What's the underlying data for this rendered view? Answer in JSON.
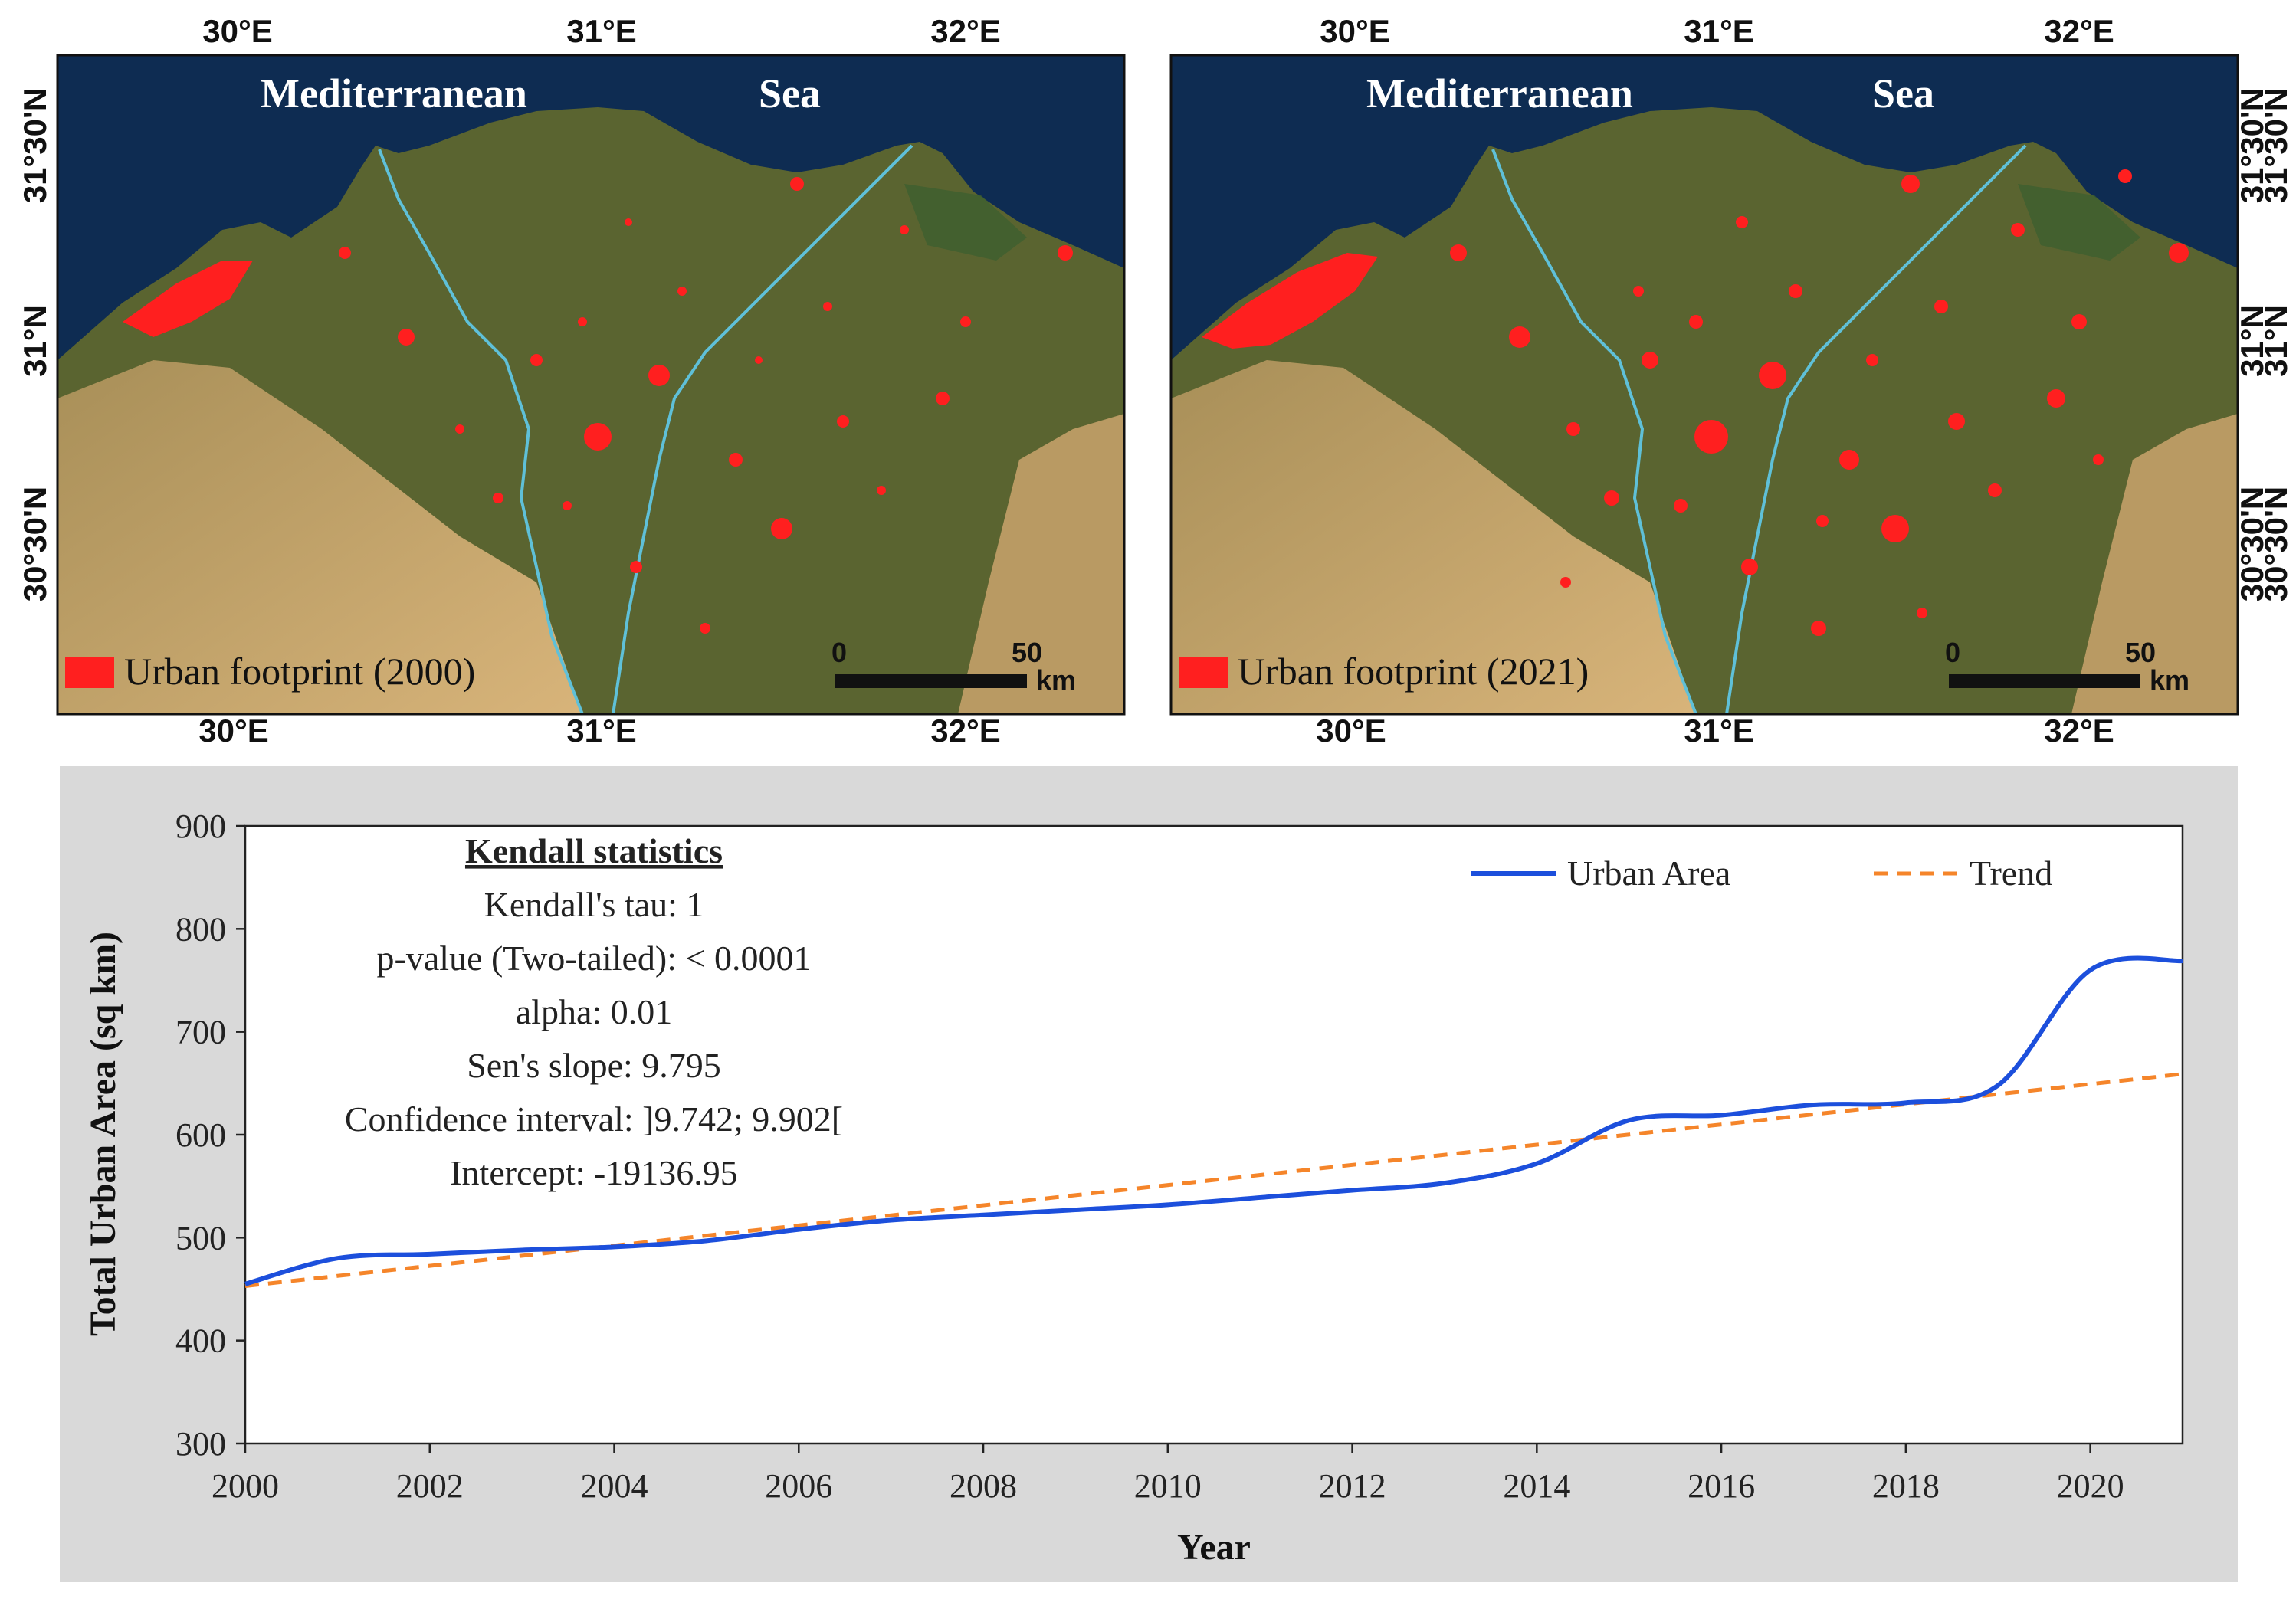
{
  "maps": [
    {
      "sea_words": [
        "Mediterranean",
        "Sea"
      ],
      "legend_label": "Urban footprint (2000)",
      "lon_labels": [
        "30°E",
        "31°E",
        "32°E"
      ],
      "lat_labels": [
        "31°30'N",
        "31°N",
        "30°30'N"
      ],
      "scale": {
        "start": "0",
        "end": "50",
        "unit": "km"
      }
    },
    {
      "sea_words": [
        "Mediterranean",
        "Sea"
      ],
      "legend_label": "Urban footprint (2021)",
      "lon_labels": [
        "30°E",
        "31°E",
        "32°E"
      ],
      "lat_labels": [
        "31°30'N",
        "31°N",
        "30°30'N"
      ],
      "scale": {
        "start": "0",
        "end": "50",
        "unit": "km"
      }
    }
  ],
  "colors": {
    "sea": "#0e2c52",
    "land": "#5a6430",
    "desert": "#c9a466",
    "urban": "#ff1f1f",
    "river": "#5fc0d8",
    "chart_background": "#d9d9d9",
    "urban_line": "#1c4fdc",
    "trend_line": "#f5852a"
  },
  "chart_data": {
    "type": "line",
    "xlabel": "Year",
    "ylabel": "Total Urban Area (sq km)",
    "xlim": [
      2000,
      2021
    ],
    "ylim": [
      300,
      900
    ],
    "x_ticks": [
      2000,
      2002,
      2004,
      2006,
      2008,
      2010,
      2012,
      2014,
      2016,
      2018,
      2020
    ],
    "y_ticks": [
      300,
      400,
      500,
      600,
      700,
      800,
      900
    ],
    "series": [
      {
        "name": "Urban Area",
        "style": "solid",
        "x": [
          2000,
          2001,
          2002,
          2003,
          2004,
          2005,
          2006,
          2007,
          2008,
          2009,
          2010,
          2011,
          2012,
          2013,
          2014,
          2015,
          2016,
          2017,
          2018,
          2019,
          2020,
          2021
        ],
        "values": [
          455,
          480,
          484,
          488,
          491,
          497,
          508,
          517,
          522,
          527,
          532,
          539,
          546,
          553,
          572,
          614,
          619,
          629,
          631,
          648,
          760,
          769
        ]
      },
      {
        "name": "Trend",
        "style": "dashed",
        "x": [
          2000,
          2021
        ],
        "values": [
          453,
          659
        ]
      }
    ],
    "statistics": {
      "title": "Kendall statistics",
      "lines": [
        "Kendall's tau: 1",
        "p-value (Two-tailed): < 0.0001",
        "alpha: 0.01",
        "Sen's slope: 9.795",
        "Confidence interval: ]9.742; 9.902[",
        "Intercept: -19136.95"
      ]
    }
  }
}
